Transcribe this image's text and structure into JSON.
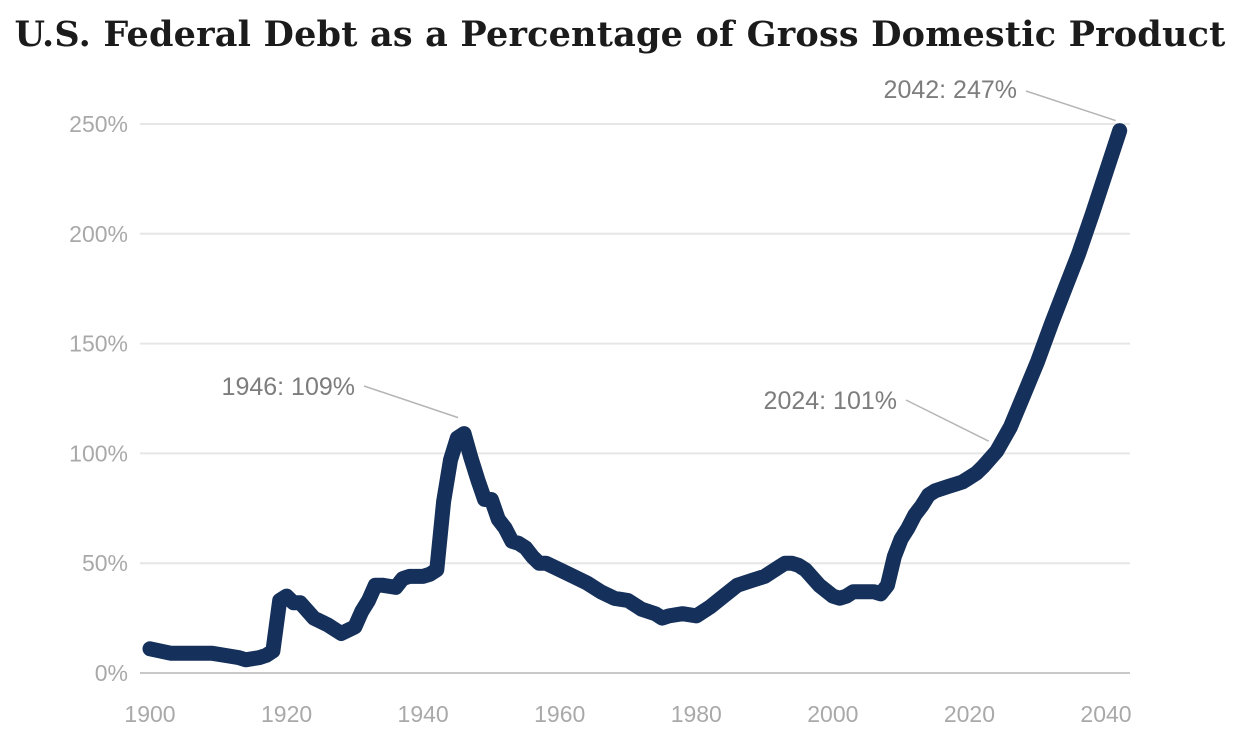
{
  "chart_data": {
    "type": "line",
    "title": "U.S. Federal Debt as a Percentage of Gross Domestic Product",
    "xlabel": "",
    "ylabel": "",
    "xlim": [
      1900,
      2042
    ],
    "ylim": [
      0,
      250
    ],
    "x_ticks": [
      {
        "value": 1900,
        "label": "1900"
      },
      {
        "value": 1920,
        "label": "1920"
      },
      {
        "value": 1940,
        "label": "1940"
      },
      {
        "value": 1960,
        "label": "1960"
      },
      {
        "value": 1980,
        "label": "1980"
      },
      {
        "value": 2000,
        "label": "2000"
      },
      {
        "value": 2020,
        "label": "2020"
      },
      {
        "value": 2040,
        "label": "2040"
      }
    ],
    "y_ticks": [
      {
        "value": 0,
        "label": "0%"
      },
      {
        "value": 50,
        "label": "50%"
      },
      {
        "value": 100,
        "label": "100%"
      },
      {
        "value": 150,
        "label": "150%"
      },
      {
        "value": 200,
        "label": "200%"
      },
      {
        "value": 250,
        "label": "250%"
      }
    ],
    "grid": true,
    "legend": "none",
    "series_color": "#15305a",
    "series": [
      {
        "x": [
          1900,
          1903,
          1906,
          1909,
          1911,
          1913,
          1914,
          1916,
          1917,
          1918,
          1919,
          1920,
          1921,
          1922,
          1924,
          1926,
          1928,
          1930,
          1931,
          1932,
          1933,
          1934,
          1936,
          1937,
          1938,
          1940,
          1941,
          1942,
          1943,
          1944,
          1945,
          1946,
          1947,
          1948,
          1949,
          1950,
          1951,
          1952,
          1953,
          1954,
          1955,
          1956,
          1957,
          1958,
          1960,
          1962,
          1964,
          1966,
          1968,
          1970,
          1972,
          1974,
          1975,
          1976,
          1978,
          1980,
          1982,
          1984,
          1986,
          1988,
          1990,
          1992,
          1993,
          1994,
          1995,
          1996,
          1998,
          2000,
          2001,
          2002,
          2003,
          2004,
          2006,
          2007,
          2008,
          2009,
          2010,
          2011,
          2012,
          2013,
          2014,
          2015,
          2016,
          2017,
          2018,
          2019,
          2020,
          2021,
          2022,
          2024,
          2026,
          2028,
          2030,
          2032,
          2034,
          2036,
          2038,
          2040,
          2042
        ],
        "y": [
          11,
          9,
          9,
          9,
          8,
          7,
          6,
          7,
          8,
          10,
          33,
          35,
          32,
          32,
          25,
          22,
          18,
          21,
          28,
          33,
          40,
          40,
          39,
          43,
          44,
          44,
          45,
          47,
          78,
          97,
          107,
          109,
          98,
          88,
          79,
          79,
          70,
          66,
          60,
          59,
          57,
          53,
          50,
          50,
          47,
          44,
          41,
          37,
          34,
          33,
          29,
          27,
          25,
          26,
          27,
          26,
          30,
          35,
          40,
          42,
          44,
          48,
          50,
          50,
          49,
          47,
          40,
          35,
          34,
          35,
          37,
          37,
          37,
          36,
          40,
          53,
          61,
          66,
          72,
          76,
          81,
          83,
          84,
          85,
          86,
          87,
          89,
          91,
          94,
          101,
          112,
          127,
          142,
          159,
          175,
          191,
          209,
          228,
          247
        ]
      }
    ],
    "annotations": [
      {
        "label": "1946: 109%",
        "x": 1946,
        "y": 109
      },
      {
        "label": "2024: 101%",
        "x": 2024,
        "y": 101
      },
      {
        "label": "2042: 247%",
        "x": 2042,
        "y": 247
      }
    ]
  }
}
